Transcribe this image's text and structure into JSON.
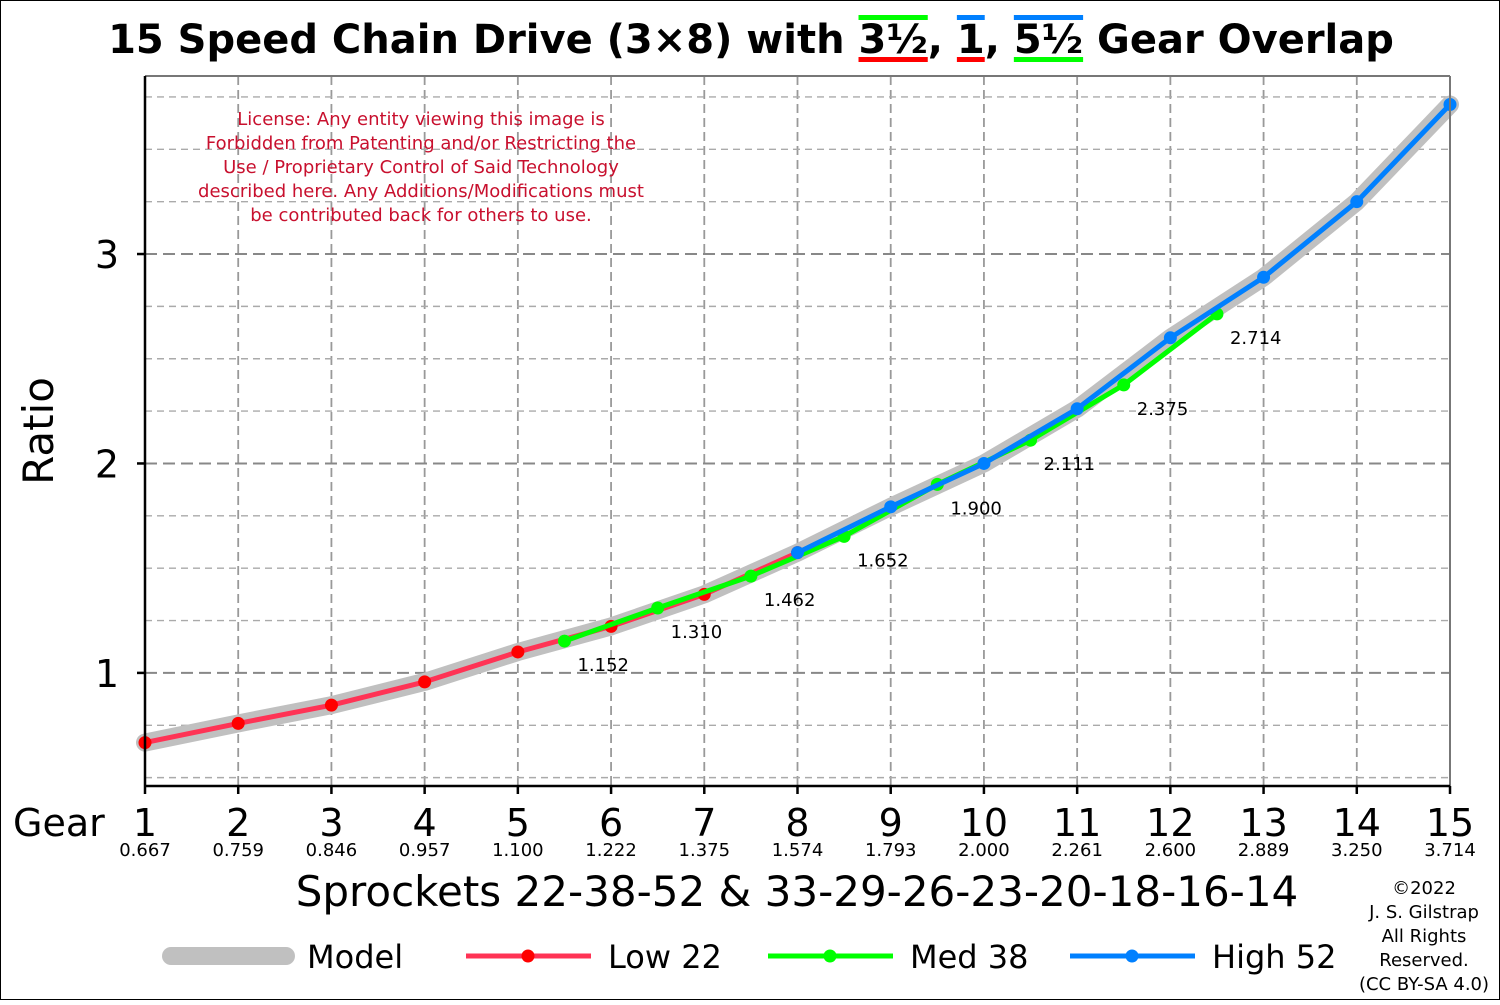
{
  "chart_data": {
    "type": "line",
    "title": {
      "prefix": "15 Speed Chain Drive (3×8) with ",
      "overlap1": "3½",
      "sep1": ", ",
      "overlap2": "1",
      "sep2": ", ",
      "overlap3": "5½",
      "suffix": " Gear Overlap"
    },
    "ylabel": "Ratio",
    "xlabel": "Sprockets  22-38-52  &  33-29-26-23-20-18-16-14",
    "gear_row_label": "Gear",
    "xlim": [
      1,
      15
    ],
    "ylim": [
      0.46,
      3.85
    ],
    "yticks": [
      1,
      2,
      3
    ],
    "grid": true,
    "gears": [
      1,
      2,
      3,
      4,
      5,
      6,
      7,
      8,
      9,
      10,
      11,
      12,
      13,
      14,
      15
    ],
    "gear_ratios": [
      "0.667",
      "0.759",
      "0.846",
      "0.957",
      "1.100",
      "1.222",
      "1.375",
      "1.574",
      "1.793",
      "2.000",
      "2.261",
      "2.600",
      "2.889",
      "3.250",
      "3.714"
    ],
    "model": {
      "name": "Model",
      "color": "#c0c0c0",
      "x": [
        1,
        2,
        3,
        4,
        5,
        6,
        7,
        8,
        9,
        10,
        11,
        12,
        13,
        14,
        15
      ],
      "y": [
        0.667,
        0.759,
        0.846,
        0.957,
        1.1,
        1.222,
        1.375,
        1.574,
        1.793,
        2.0,
        2.261,
        2.6,
        2.889,
        3.25,
        3.714
      ]
    },
    "series": [
      {
        "name": "Low 22",
        "color": "#ff3355",
        "marker_color": "#ff0000",
        "x": [
          1,
          2,
          3,
          4,
          5,
          6,
          7,
          8
        ],
        "y": [
          0.667,
          0.759,
          0.846,
          0.957,
          1.1,
          1.222,
          1.375,
          1.574
        ]
      },
      {
        "name": "Med 38",
        "color": "#00ff00",
        "marker_color": "#00ff00",
        "x": [
          5.5,
          6.5,
          7.5,
          8.5,
          9.5,
          10.5,
          11.5,
          12.5
        ],
        "y": [
          1.152,
          1.31,
          1.462,
          1.652,
          1.9,
          2.111,
          2.375,
          2.714
        ]
      },
      {
        "name": "High 52",
        "color": "#0080ff",
        "marker_color": "#0080ff",
        "x": [
          8,
          9,
          10,
          11,
          12,
          13,
          14,
          15
        ],
        "y": [
          1.574,
          1.793,
          2.0,
          2.261,
          2.6,
          2.889,
          3.25,
          3.714
        ]
      }
    ],
    "annotations": [
      "1.152",
      "1.310",
      "1.462",
      "1.652",
      "1.900",
      "2.111",
      "2.375",
      "2.714"
    ],
    "legend": {
      "placement": "bottom"
    },
    "license_text": [
      "License: Any entity viewing this image is",
      "Forbidden from Patenting and/or Restricting the",
      "Use / Proprietary Control of Said Technology",
      "described here. Any Additions/Modifications must",
      "be contributed back for others to use."
    ],
    "license_color": "#c8102e",
    "copyright": [
      "©2022",
      "J. S. Gilstrap",
      "All Rights",
      "Reserved.",
      "(CC BY-SA 4.0)"
    ]
  }
}
